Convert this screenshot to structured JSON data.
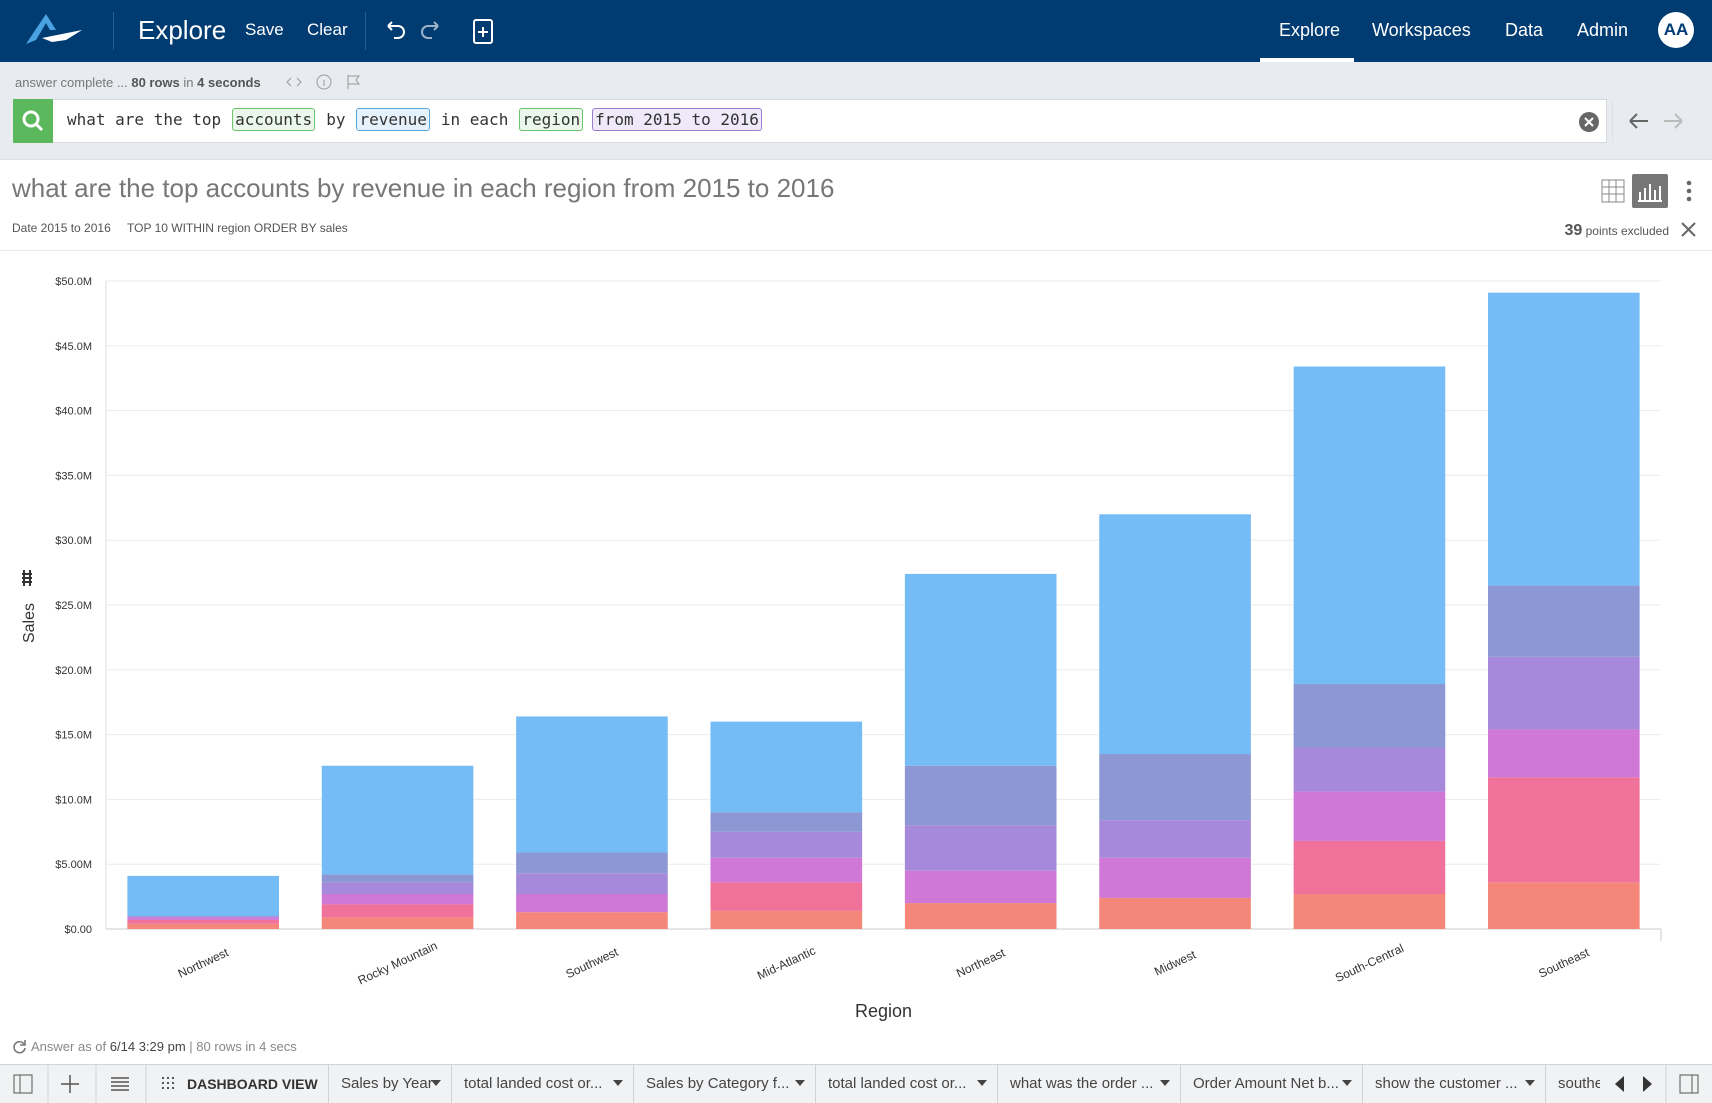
{
  "nav": {
    "app_title": "Explore",
    "actions": [
      "Save",
      "Clear"
    ],
    "menu": [
      "Explore",
      "Workspaces",
      "Data",
      "Admin"
    ],
    "avatar": "AA"
  },
  "status": {
    "prefix": "answer complete ...",
    "rows": "80 rows",
    "in": "in",
    "time": "4 seconds"
  },
  "search": {
    "query": [
      {
        "text": "what are the top"
      },
      {
        "text": "accounts",
        "color": "#6cc46c",
        "fill": "#eaf7ea"
      },
      {
        "text": "by"
      },
      {
        "text": "revenue",
        "color": "#5aa7dd",
        "fill": "#e6f2fb"
      },
      {
        "text": "in each"
      },
      {
        "text": "region",
        "color": "#6cc46c",
        "fill": "#eaf7ea"
      },
      {
        "text": "from 2015 to 2016",
        "color": "#9a7fd0",
        "fill": "#efeaf9"
      }
    ]
  },
  "answer": {
    "title": "what are the top accounts by revenue in each region from 2015 to 2016",
    "filters": [
      "Date 2015 to 2016",
      "TOP 10 WITHIN region ORDER BY sales"
    ],
    "excluded_count": 39,
    "excluded_text": "points excluded"
  },
  "chart_data": {
    "type": "stacked_bar",
    "x_label": "Region",
    "y_label": "Sales",
    "categories": [
      "Northwest",
      "Rocky Mountain",
      "Southwest",
      "Mid-Atlantic",
      "Northeast",
      "Midwest",
      "South-Central",
      "Southeast"
    ],
    "series": [
      {
        "color": "#f4867a",
        "values": [
          0.4,
          0.9,
          1.3,
          1.4,
          2.0,
          2.4,
          2.7,
          3.6
        ]
      },
      {
        "color": "#f0719a",
        "values": [
          0.3,
          1.0,
          0,
          2.2,
          0,
          0,
          4.1,
          8.1
        ]
      },
      {
        "color": "#cf78d6",
        "values": [
          0.2,
          0.8,
          1.4,
          1.9,
          2.5,
          3.1,
          3.8,
          3.7
        ]
      },
      {
        "color": "#a689da",
        "values": [
          0.1,
          0.9,
          1.6,
          2.0,
          3.5,
          2.9,
          3.4,
          5.6
        ]
      },
      {
        "color": "#8c97d3",
        "values": [
          0,
          0.6,
          1.6,
          1.5,
          4.6,
          5.1,
          4.9,
          5.5
        ]
      },
      {
        "color": "#75bcf7",
        "values": [
          3.1,
          8.4,
          10.5,
          7.0,
          14.8,
          18.5,
          24.5,
          22.6
        ]
      }
    ],
    "ylim": [
      0,
      50
    ],
    "yticks": [
      {
        "value": 0,
        "label": "$0.00"
      },
      {
        "value": 5,
        "label": "$5.00M"
      },
      {
        "value": 10,
        "label": "$10.0M"
      },
      {
        "value": 15,
        "label": "$15.0M"
      },
      {
        "value": 20,
        "label": "$20.0M"
      },
      {
        "value": 25,
        "label": "$25.0M"
      },
      {
        "value": 30,
        "label": "$30.0M"
      },
      {
        "value": 35,
        "label": "$35.0M"
      },
      {
        "value": 40,
        "label": "$40.0M"
      },
      {
        "value": 45,
        "label": "$45.0M"
      },
      {
        "value": 50,
        "label": "$50.0M"
      }
    ],
    "grid": true
  },
  "footer": {
    "prefix": "Answer as of",
    "time": "6/14 3:29 pm",
    "rest": "| 80 rows in 4 secs"
  },
  "tabs": {
    "dashboard": "DASHBOARD VIEW",
    "items": [
      "Sales by Year",
      "total landed cost or...",
      "Sales by Category f...",
      "total landed cost or...",
      "what was the order ...",
      "Order Amount Net b...",
      "show the customer ...",
      "southe"
    ]
  }
}
